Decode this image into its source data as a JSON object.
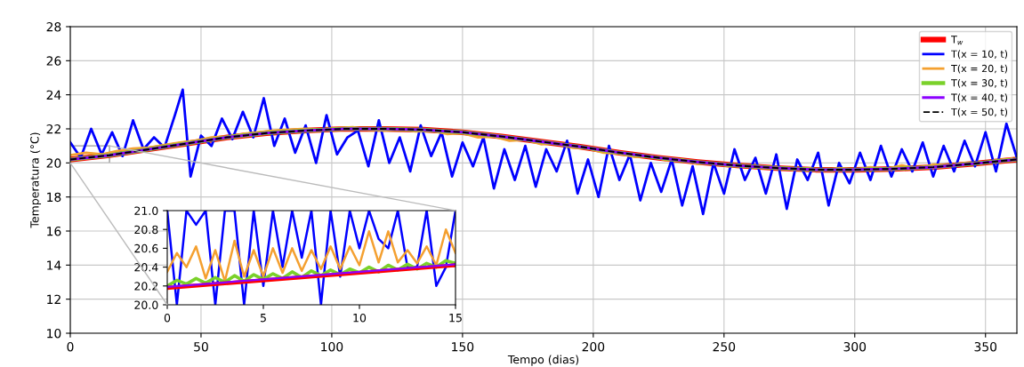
{
  "chart_data": [
    {
      "type": "line",
      "xlabel": "Tempo (dias)",
      "ylabel": "Temperatura (°C)",
      "xlim": [
        0,
        362
      ],
      "ylim": [
        10,
        28
      ],
      "xticks": [
        0,
        50,
        100,
        150,
        200,
        250,
        300,
        350
      ],
      "yticks": [
        10,
        12,
        14,
        16,
        18,
        20,
        22,
        24,
        26,
        28
      ],
      "grid": true,
      "legend": "top right",
      "x": [
        0,
        15,
        30,
        45,
        60,
        75,
        90,
        105,
        120,
        135,
        150,
        165,
        180,
        195,
        210,
        225,
        240,
        255,
        270,
        285,
        300,
        315,
        330,
        345,
        362
      ],
      "series": [
        {
          "name": "T$_{w}$",
          "color": "#ff0000",
          "values": [
            20.2,
            20.45,
            20.8,
            21.15,
            21.5,
            21.75,
            21.9,
            22.0,
            22.0,
            21.95,
            21.8,
            21.55,
            21.25,
            20.95,
            20.6,
            20.3,
            20.05,
            19.85,
            19.7,
            19.6,
            19.6,
            19.65,
            19.75,
            19.95,
            20.2
          ]
        },
        {
          "name": "T(x = 10, t)",
          "color": "#0000ff",
          "x": [
            0,
            4,
            8,
            12,
            16,
            20,
            24,
            28,
            32,
            36,
            40,
            43,
            46,
            50,
            54,
            58,
            62,
            66,
            70,
            74,
            78,
            82,
            86,
            90,
            94,
            98,
            102,
            106,
            110,
            114,
            118,
            122,
            126,
            130,
            134,
            138,
            142,
            146,
            150,
            154,
            158,
            162,
            166,
            170,
            174,
            178,
            182,
            186,
            190,
            194,
            198,
            202,
            206,
            210,
            214,
            218,
            222,
            226,
            230,
            234,
            238,
            242,
            246,
            250,
            254,
            258,
            262,
            266,
            270,
            274,
            278,
            282,
            286,
            290,
            294,
            298,
            302,
            306,
            310,
            314,
            318,
            322,
            326,
            330,
            334,
            338,
            342,
            346,
            350,
            354,
            358,
            362
          ],
          "values": [
            21.2,
            20.3,
            22.0,
            20.5,
            21.8,
            20.4,
            22.5,
            20.8,
            21.5,
            20.9,
            22.8,
            24.3,
            19.2,
            21.6,
            21.0,
            22.6,
            21.4,
            23.0,
            21.5,
            23.8,
            21.0,
            22.6,
            20.6,
            22.2,
            20.0,
            22.8,
            20.5,
            21.5,
            21.9,
            19.8,
            22.5,
            20.0,
            21.5,
            19.5,
            22.2,
            20.4,
            21.8,
            19.2,
            21.2,
            19.8,
            21.5,
            18.5,
            20.8,
            19.0,
            21.0,
            18.6,
            20.8,
            19.5,
            21.3,
            18.2,
            20.2,
            18.0,
            21.0,
            19.0,
            20.5,
            17.8,
            20.0,
            18.3,
            20.2,
            17.5,
            19.8,
            17.0,
            20.0,
            18.2,
            20.8,
            19.0,
            20.3,
            18.2,
            20.5,
            17.3,
            20.2,
            19.0,
            20.6,
            17.5,
            20.0,
            18.8,
            20.6,
            19.0,
            21.0,
            19.2,
            20.8,
            19.5,
            21.2,
            19.2,
            21.0,
            19.5,
            21.3,
            19.8,
            21.8,
            19.5,
            22.3,
            20.3
          ]
        },
        {
          "name": "T(x = 20, t)",
          "color": "#f4a030",
          "x": [
            0,
            6,
            12,
            18,
            24,
            30,
            36,
            42,
            48,
            54,
            60,
            66,
            72,
            78,
            84,
            90,
            96,
            102,
            108,
            114,
            120,
            126,
            132,
            138,
            144,
            150,
            156,
            162,
            168,
            174,
            180,
            186,
            192,
            198,
            204,
            210,
            216,
            222,
            228,
            234,
            240,
            246,
            252,
            258,
            264,
            270,
            276,
            282,
            288,
            294,
            300,
            306,
            312,
            318,
            324,
            330,
            336,
            342,
            348,
            354,
            360
          ],
          "values": [
            20.45,
            20.6,
            20.5,
            20.7,
            20.85,
            20.9,
            21.05,
            21.2,
            21.3,
            21.5,
            21.55,
            21.7,
            21.8,
            21.9,
            21.95,
            22.0,
            21.95,
            22.05,
            22.1,
            21.95,
            21.9,
            22.0,
            21.85,
            21.9,
            21.7,
            21.75,
            21.5,
            21.55,
            21.3,
            21.35,
            21.1,
            21.15,
            20.9,
            20.85,
            20.6,
            20.55,
            20.35,
            20.4,
            20.15,
            20.2,
            19.95,
            20.0,
            19.8,
            19.85,
            19.7,
            19.75,
            19.6,
            19.7,
            19.55,
            19.7,
            19.6,
            19.75,
            19.65,
            19.85,
            19.7,
            19.9,
            19.85,
            20.0,
            19.95,
            20.15,
            20.25
          ]
        },
        {
          "name": "T(x = 30, t)",
          "color": "#7ad12a",
          "values": [
            20.2,
            20.45,
            20.8,
            21.15,
            21.5,
            21.75,
            21.9,
            22.0,
            22.0,
            21.95,
            21.8,
            21.55,
            21.25,
            20.95,
            20.6,
            20.3,
            20.05,
            19.85,
            19.7,
            19.6,
            19.6,
            19.65,
            19.75,
            19.95,
            20.2
          ]
        },
        {
          "name": "T(x = 40, t)",
          "color": "#8b00ff",
          "values": [
            20.2,
            20.45,
            20.8,
            21.15,
            21.5,
            21.75,
            21.9,
            22.0,
            22.0,
            21.95,
            21.8,
            21.55,
            21.25,
            20.95,
            20.6,
            20.3,
            20.05,
            19.85,
            19.7,
            19.6,
            19.6,
            19.65,
            19.75,
            19.95,
            20.2
          ]
        },
        {
          "name": "T(x = 50, t)",
          "color": "#000000",
          "line_style": "dashed",
          "values": [
            20.2,
            20.45,
            20.8,
            21.15,
            21.5,
            21.75,
            21.9,
            22.0,
            22.0,
            21.95,
            21.8,
            21.55,
            21.25,
            20.95,
            20.6,
            20.3,
            20.05,
            19.85,
            19.7,
            19.6,
            19.6,
            19.65,
            19.75,
            19.95,
            20.2
          ]
        }
      ]
    },
    {
      "type": "line",
      "xlim": [
        0,
        15
      ],
      "ylim": [
        20.0,
        21.0
      ],
      "xticks": [
        0,
        5,
        10,
        15
      ],
      "yticks": [
        {
          "value": 20.0,
          "label": "20.0"
        },
        20.2,
        20.4,
        20.6,
        20.8,
        {
          "value": 21.0,
          "label": "21.0"
        }
      ],
      "x": [
        0,
        0.5,
        1,
        1.5,
        2,
        2.5,
        3,
        3.5,
        4,
        4.5,
        5,
        5.5,
        6,
        6.5,
        7,
        7.5,
        8,
        8.5,
        9,
        9.5,
        10,
        10.5,
        11,
        11.5,
        12,
        12.5,
        13,
        13.5,
        14,
        14.5,
        15
      ],
      "series": [
        {
          "color": "#0000ff",
          "values": [
            21.0,
            20.0,
            21.0,
            20.85,
            21.0,
            20.0,
            21.0,
            21.0,
            20.0,
            21.0,
            20.2,
            21.0,
            20.4,
            21.0,
            20.5,
            21.0,
            20.0,
            21.0,
            20.3,
            21.0,
            20.6,
            21.0,
            20.7,
            20.6,
            21.0,
            20.4,
            20.4,
            21.0,
            20.2,
            20.4,
            21.0
          ]
        },
        {
          "color": "#f4a030",
          "values": [
            20.35,
            20.55,
            20.4,
            20.62,
            20.28,
            20.58,
            20.25,
            20.68,
            20.3,
            20.58,
            20.3,
            20.6,
            20.34,
            20.6,
            20.36,
            20.58,
            20.38,
            20.62,
            20.38,
            20.62,
            20.42,
            20.78,
            20.45,
            20.78,
            20.45,
            20.58,
            20.44,
            20.62,
            20.42,
            20.8,
            20.55
          ]
        },
        {
          "color": "#7ad12a",
          "values": [
            20.2,
            20.26,
            20.22,
            20.28,
            20.23,
            20.29,
            20.24,
            20.31,
            20.25,
            20.32,
            20.27,
            20.33,
            20.28,
            20.35,
            20.29,
            20.36,
            20.31,
            20.37,
            20.32,
            20.38,
            20.34,
            20.4,
            20.35,
            20.42,
            20.37,
            20.43,
            20.38,
            20.44,
            20.4,
            20.47,
            20.44
          ]
        },
        {
          "color": "#ff0000",
          "x": [
            0,
            15
          ],
          "values": [
            20.18,
            20.42
          ]
        },
        {
          "color": "#8b00ff",
          "x": [
            0,
            15
          ],
          "values": [
            20.19,
            20.43
          ]
        }
      ]
    }
  ]
}
